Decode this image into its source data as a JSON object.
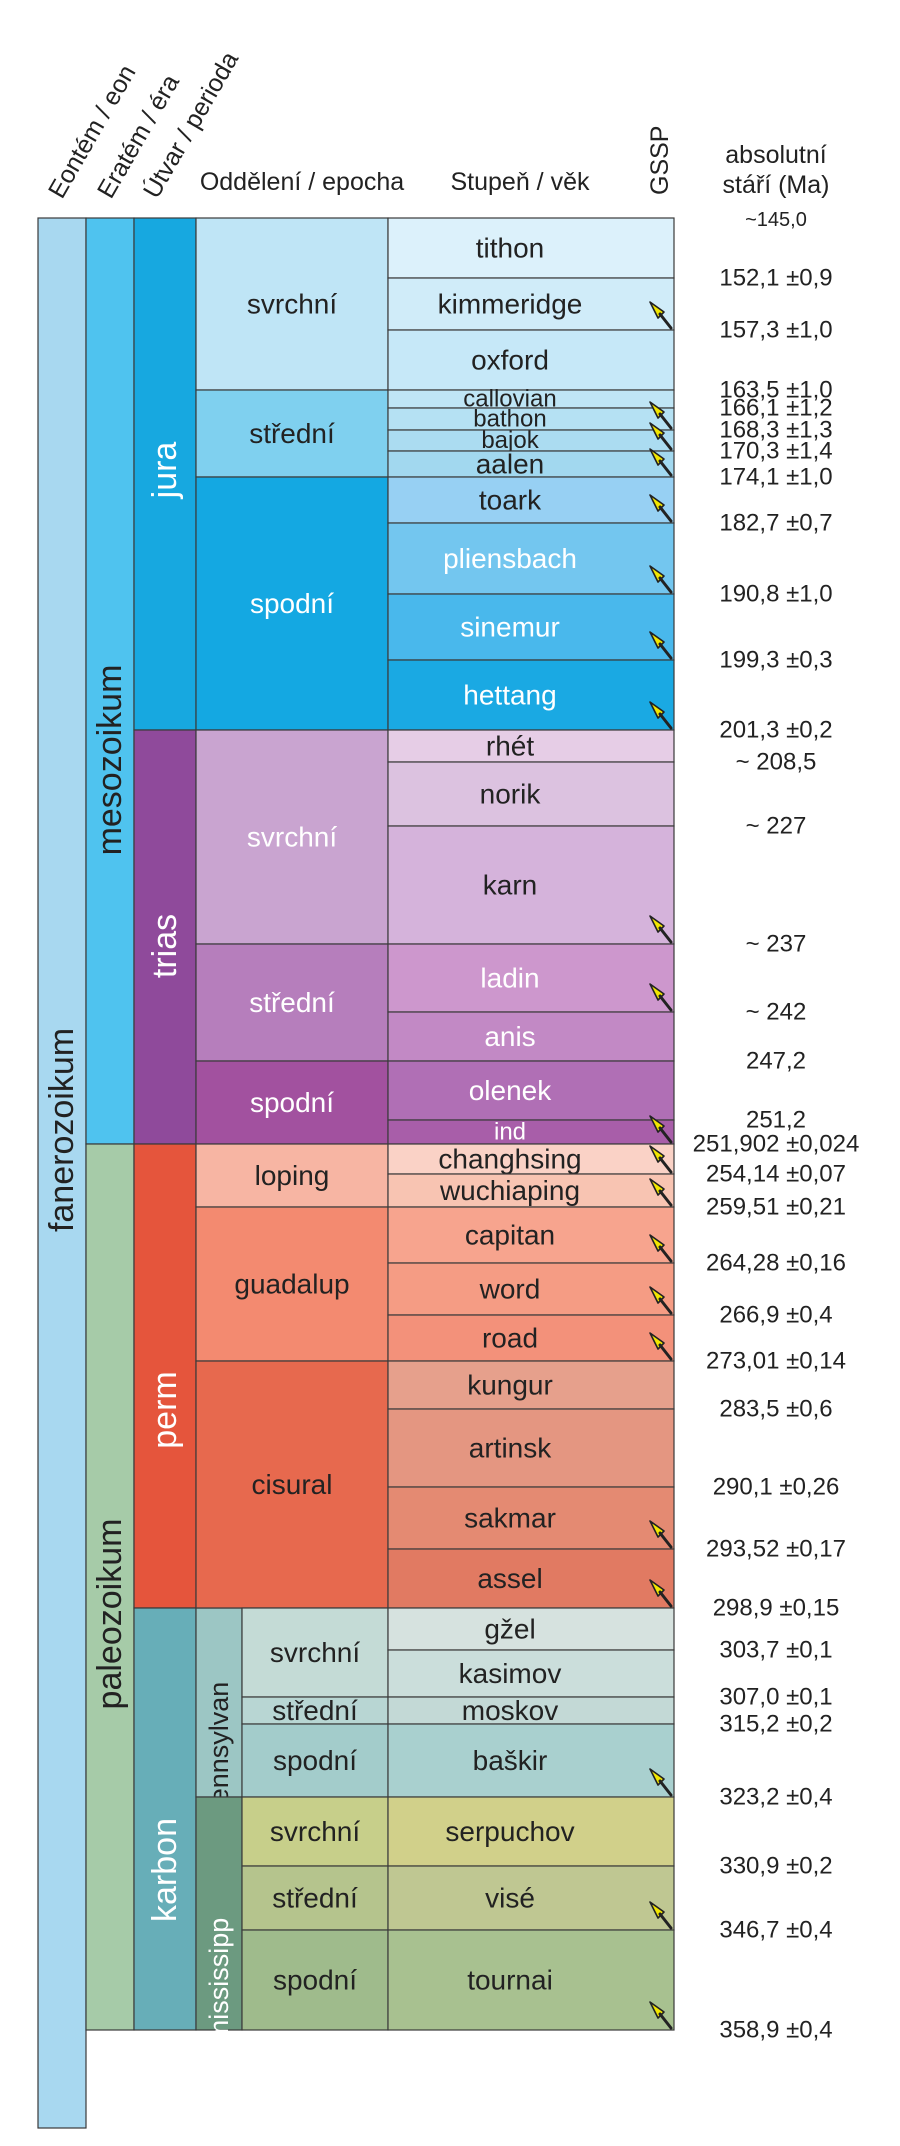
{
  "headers": {
    "eon": "Eontém / eon",
    "era": "Eratém / éra",
    "period": "Útvar / perioda",
    "epoch": "Oddělení / epocha",
    "stage": "Stupeň / věk",
    "gssp": "GSSP",
    "age_line1": "absolutní",
    "age_line2": "stáří (Ma)"
  },
  "top_age": "~145,0",
  "eon": {
    "label": "fanerozoikum",
    "color": "#a8d8f0"
  },
  "eras": [
    {
      "label": "mesozoikum",
      "color": "#4fc3ef"
    },
    {
      "label": "paleozoikum",
      "color": "#a6cba8"
    }
  ],
  "periods": [
    {
      "label": "jura",
      "color": "#17a8e0"
    },
    {
      "label": "trias",
      "color": "#8f4a9b"
    },
    {
      "label": "perm",
      "color": "#e5553c"
    },
    {
      "label": "karbon",
      "color": "#67aeb8"
    }
  ],
  "subperiods": [
    {
      "label": "pennsylvan",
      "color": "#9cc6c4"
    },
    {
      "label": "mississipp",
      "color": "#6c9a80"
    }
  ],
  "epochs": [
    {
      "label": "svrchní",
      "color": "#bfe5f6",
      "dark": true
    },
    {
      "label": "střední",
      "color": "#7fd0ef",
      "dark": true
    },
    {
      "label": "spodní",
      "color": "#14a8e2",
      "dark": false
    },
    {
      "label": "svrchní",
      "color": "#c9a4d0",
      "dark": false
    },
    {
      "label": "střední",
      "color": "#b67ebc",
      "dark": false
    },
    {
      "label": "spodní",
      "color": "#a2519f",
      "dark": false
    },
    {
      "label": "loping",
      "color": "#f7b5a3",
      "dark": true
    },
    {
      "label": "guadalup",
      "color": "#f38a70",
      "dark": true
    },
    {
      "label": "cisural",
      "color": "#e7694e",
      "dark": true
    },
    {
      "label": "svrchní",
      "color": "#c4dbd6",
      "dark": true
    },
    {
      "label": "střední",
      "color": "#b8d6d3",
      "dark": true
    },
    {
      "label": "spodní",
      "color": "#a3cccb",
      "dark": true
    },
    {
      "label": "svrchní",
      "color": "#c7cf8a",
      "dark": true
    },
    {
      "label": "střední",
      "color": "#b5c48d",
      "dark": true
    },
    {
      "label": "spodní",
      "color": "#9fbb8c",
      "dark": true
    }
  ],
  "stages": [
    {
      "label": "tithon",
      "color": "#dcf1fb",
      "dark": true,
      "gssp": false
    },
    {
      "label": "kimmeridge",
      "color": "#d0ecf9",
      "dark": true,
      "gssp": true
    },
    {
      "label": "oxford",
      "color": "#c6e8f8",
      "dark": true,
      "gssp": false
    },
    {
      "label": "callovian",
      "color": "#bfe5f5",
      "dark": true,
      "gssp": false
    },
    {
      "label": "bathon",
      "color": "#b5e1f3",
      "dark": true,
      "gssp": true
    },
    {
      "label": "bajok",
      "color": "#abdcf1",
      "dark": true,
      "gssp": true
    },
    {
      "label": "aalen",
      "color": "#a2d8ef",
      "dark": true,
      "gssp": true
    },
    {
      "label": "toark",
      "color": "#97d0f3",
      "dark": true,
      "gssp": true
    },
    {
      "label": "pliensbach",
      "color": "#73c6ef",
      "dark": false,
      "gssp": true
    },
    {
      "label": "sinemur",
      "color": "#49b8ec",
      "dark": false,
      "gssp": true
    },
    {
      "label": "hettang",
      "color": "#1aa9e3",
      "dark": false,
      "gssp": true
    },
    {
      "label": "rhét",
      "color": "#e6cde6",
      "dark": true,
      "gssp": false
    },
    {
      "label": "norik",
      "color": "#dcc2e0",
      "dark": true,
      "gssp": false
    },
    {
      "label": "karn",
      "color": "#d5b3db",
      "dark": true,
      "gssp": true
    },
    {
      "label": "ladin",
      "color": "#cd97cd",
      "dark": false,
      "gssp": true
    },
    {
      "label": "anis",
      "color": "#c289c5",
      "dark": false,
      "gssp": false
    },
    {
      "label": "olenek",
      "color": "#b06fb5",
      "dark": false,
      "gssp": false
    },
    {
      "label": "ind",
      "color": "#a85ea9",
      "dark": false,
      "gssp": true
    },
    {
      "label": "changhsing",
      "color": "#fad2c6",
      "dark": true,
      "gssp": true
    },
    {
      "label": "wuchiaping",
      "color": "#f8c4b2",
      "dark": true,
      "gssp": true
    },
    {
      "label": "capitan",
      "color": "#f7a48e",
      "dark": true,
      "gssp": true
    },
    {
      "label": "word",
      "color": "#f59c84",
      "dark": true,
      "gssp": true
    },
    {
      "label": "road",
      "color": "#f3917a",
      "dark": true,
      "gssp": true
    },
    {
      "label": "kungur",
      "color": "#e6a08c",
      "dark": true,
      "gssp": false
    },
    {
      "label": "artinsk",
      "color": "#e49681",
      "dark": true,
      "gssp": false
    },
    {
      "label": "sakmar",
      "color": "#e48a72",
      "dark": true,
      "gssp": true
    },
    {
      "label": "assel",
      "color": "#e17a62",
      "dark": true,
      "gssp": true
    },
    {
      "label": "gžel",
      "color": "#d6e2df",
      "dark": true,
      "gssp": false
    },
    {
      "label": "kasimov",
      "color": "#cbdedb",
      "dark": true,
      "gssp": false
    },
    {
      "label": "moskov",
      "color": "#c3d9d6",
      "dark": true,
      "gssp": false
    },
    {
      "label": "baškir",
      "color": "#a9d0cf",
      "dark": true,
      "gssp": true
    },
    {
      "label": "serpuchov",
      "color": "#d1d08a",
      "dark": true,
      "gssp": false
    },
    {
      "label": "visé",
      "color": "#bfc792",
      "dark": true,
      "gssp": true
    },
    {
      "label": "tournai",
      "color": "#a8c190",
      "dark": true,
      "gssp": true
    }
  ],
  "ages": [
    "152,1 ±0,9",
    "157,3 ±1,0",
    "163,5 ±1,0",
    "166,1 ±1,2",
    "168,3 ±1,3",
    "170,3 ±1,4",
    "174,1 ±1,0",
    "182,7 ±0,7",
    "190,8 ±1,0",
    "199,3 ±0,3",
    "201,3 ±0,2",
    "~ 208,5",
    "~ 227",
    "~ 237",
    "~ 242",
    "247,2",
    "251,2",
    "251,902 ±0,024",
    "254,14 ±0,07",
    "259,51 ±0,21",
    "264,28 ±0,16",
    "266,9 ±0,4",
    "273,01 ±0,14",
    "283,5 ±0,6",
    "290,1 ±0,26",
    "293,52 ±0,17",
    "298,9 ±0,15",
    "303,7 ±0,1",
    "307,0 ±0,1",
    "315,2 ±0,2",
    "323,2 ±0,4",
    "330,9 ±0,2",
    "346,7 ±0,4",
    "358,9 ±0,4"
  ],
  "gssp_color": "#f2e600"
}
